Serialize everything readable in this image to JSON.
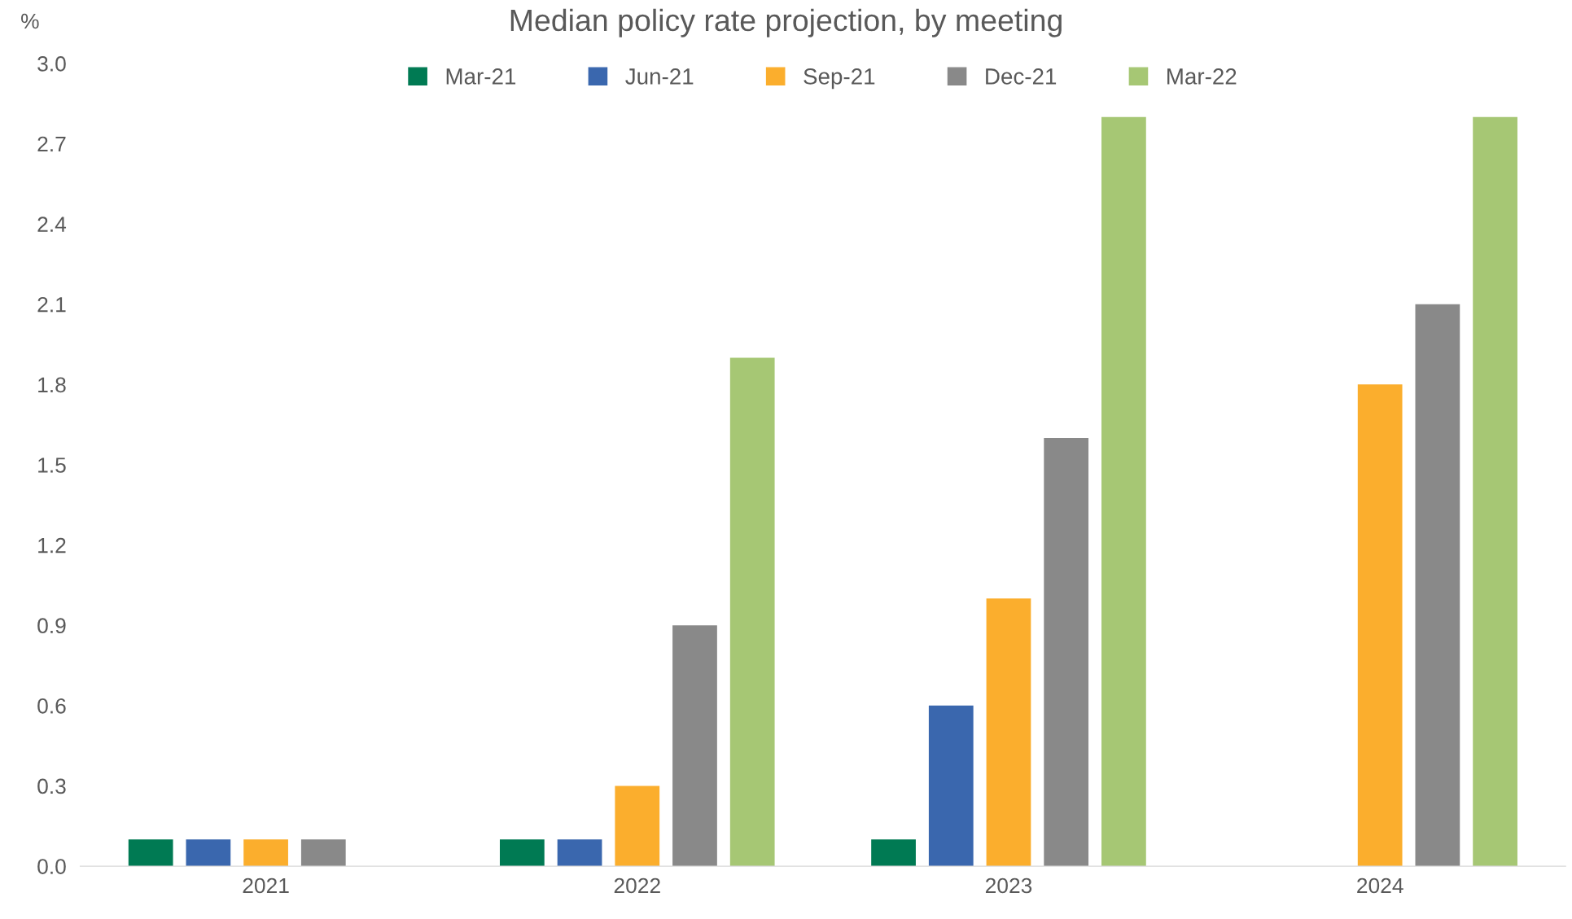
{
  "chart_data": {
    "type": "bar",
    "title": "Median policy rate projection, by meeting",
    "ylabel": "%",
    "categories": [
      "2021",
      "2022",
      "2023",
      "2024"
    ],
    "series": [
      {
        "name": "Mar-21",
        "color": "#007a53",
        "values": [
          0.1,
          0.1,
          0.1,
          null
        ]
      },
      {
        "name": "Jun-21",
        "color": "#3a67ae",
        "values": [
          0.1,
          0.1,
          0.6,
          null
        ]
      },
      {
        "name": "Sep-21",
        "color": "#fbae2d",
        "values": [
          0.1,
          0.3,
          1.0,
          1.8
        ]
      },
      {
        "name": "Dec-21",
        "color": "#898989",
        "values": [
          0.1,
          0.9,
          1.6,
          2.1
        ]
      },
      {
        "name": "Mar-22",
        "color": "#a6c774",
        "values": [
          null,
          1.9,
          2.8,
          2.8
        ]
      }
    ],
    "ylim": [
      0,
      3.0
    ],
    "yticks": [
      {
        "value": 0,
        "label": "0.0"
      },
      0.3,
      0.6,
      0.9,
      1.2,
      1.5,
      1.8,
      2.1,
      2.4,
      2.7,
      {
        "value": 3,
        "label": "3.0"
      }
    ],
    "grid": false,
    "legend": "top"
  }
}
